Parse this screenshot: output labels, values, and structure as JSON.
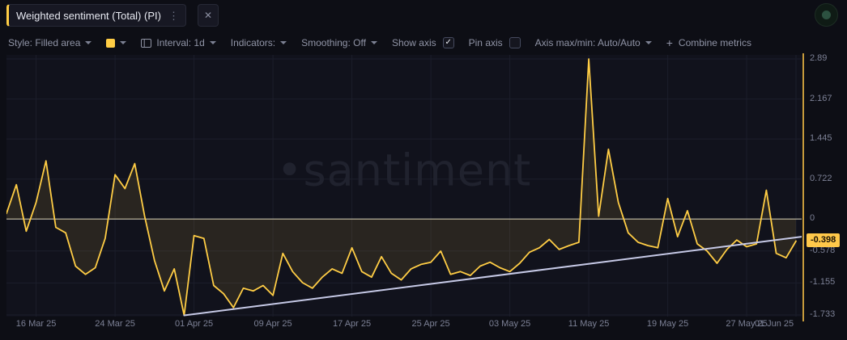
{
  "tab": {
    "title": "Weighted sentiment (Total) (PI)",
    "kebab_icon": "⋮",
    "close_icon": "✕",
    "accent_color": "#ffcd45"
  },
  "toolbar": {
    "style_label": "Style: Filled area",
    "swatch_color": "#ffcd45",
    "interval_label": "Interval: 1d",
    "indicators_label": "Indicators:",
    "smoothing_label": "Smoothing: Off",
    "show_axis_label": "Show axis",
    "show_axis_checked": true,
    "check_glyph": "✓",
    "pin_axis_label": "Pin axis",
    "pin_axis_checked": false,
    "axis_maxmin_label": "Axis max/min: Auto/Auto",
    "plus_sign": "+",
    "combine_metrics_label": "Combine metrics"
  },
  "watermark": "•santiment",
  "axis": {
    "current_value_label": "-0.398"
  },
  "chart_data": {
    "type": "area",
    "title": "Weighted sentiment (Total) (PI)",
    "interval": "1d",
    "xlabel": "",
    "ylabel": "",
    "ylim": [
      -1.733,
      2.89
    ],
    "grid": true,
    "colors": {
      "series": "#ffcd45",
      "fill_opacity": 0.1,
      "trend": "#c6c9e6",
      "zero_line": "#e2dcc5",
      "grid": "#1c1e2b",
      "axis": "#c79b3c",
      "background": "#11121c"
    },
    "y_ticks": [
      2.89,
      2.167,
      1.445,
      0.722,
      0,
      -0.578,
      -1.155,
      -1.733
    ],
    "y_tick_labels": [
      "2.89",
      "2.167",
      "1.445",
      "0.722",
      "0",
      "-0.578",
      "-1.155",
      "-1.733"
    ],
    "x_tick_labels": [
      "16 Mar 25",
      "24 Mar 25",
      "01 Apr 25",
      "09 Apr 25",
      "17 Apr 25",
      "25 Apr 25",
      "03 May 25",
      "11 May 25",
      "19 May 25",
      "27 May 25",
      "01 Jun 25"
    ],
    "x_tick_indices": [
      3,
      11,
      19,
      27,
      35,
      43,
      51,
      59,
      67,
      75,
      80
    ],
    "dates": [
      "2025-03-13",
      "2025-03-14",
      "2025-03-15",
      "2025-03-16",
      "2025-03-17",
      "2025-03-18",
      "2025-03-19",
      "2025-03-20",
      "2025-03-21",
      "2025-03-22",
      "2025-03-23",
      "2025-03-24",
      "2025-03-25",
      "2025-03-26",
      "2025-03-27",
      "2025-03-28",
      "2025-03-29",
      "2025-03-30",
      "2025-03-31",
      "2025-04-01",
      "2025-04-02",
      "2025-04-03",
      "2025-04-04",
      "2025-04-05",
      "2025-04-06",
      "2025-04-07",
      "2025-04-08",
      "2025-04-09",
      "2025-04-10",
      "2025-04-11",
      "2025-04-12",
      "2025-04-13",
      "2025-04-14",
      "2025-04-15",
      "2025-04-16",
      "2025-04-17",
      "2025-04-18",
      "2025-04-19",
      "2025-04-20",
      "2025-04-21",
      "2025-04-22",
      "2025-04-23",
      "2025-04-24",
      "2025-04-25",
      "2025-04-26",
      "2025-04-27",
      "2025-04-28",
      "2025-04-29",
      "2025-04-30",
      "2025-05-01",
      "2025-05-02",
      "2025-05-03",
      "2025-05-04",
      "2025-05-05",
      "2025-05-06",
      "2025-05-07",
      "2025-05-08",
      "2025-05-09",
      "2025-05-10",
      "2025-05-11",
      "2025-05-12",
      "2025-05-13",
      "2025-05-14",
      "2025-05-15",
      "2025-05-16",
      "2025-05-17",
      "2025-05-18",
      "2025-05-19",
      "2025-05-20",
      "2025-05-21",
      "2025-05-22",
      "2025-05-23",
      "2025-05-24",
      "2025-05-25",
      "2025-05-26",
      "2025-05-27",
      "2025-05-28",
      "2025-05-29",
      "2025-05-30",
      "2025-05-31",
      "2025-06-01"
    ],
    "values": [
      0.1,
      0.62,
      -0.22,
      0.3,
      1.05,
      -0.15,
      -0.25,
      -0.85,
      -1.0,
      -0.88,
      -0.35,
      0.8,
      0.55,
      1.0,
      0.05,
      -0.75,
      -1.3,
      -0.9,
      -1.74,
      -0.3,
      -0.35,
      -1.2,
      -1.35,
      -1.6,
      -1.25,
      -1.3,
      -1.2,
      -1.38,
      -0.62,
      -0.95,
      -1.15,
      -1.25,
      -1.05,
      -0.9,
      -0.98,
      -0.52,
      -0.95,
      -1.05,
      -0.68,
      -0.98,
      -1.1,
      -0.9,
      -0.82,
      -0.78,
      -0.58,
      -1.0,
      -0.95,
      -1.02,
      -0.85,
      -0.78,
      -0.88,
      -0.95,
      -0.8,
      -0.6,
      -0.52,
      -0.37,
      -0.55,
      -0.48,
      -0.42,
      2.89,
      0.05,
      1.26,
      0.3,
      -0.25,
      -0.42,
      -0.48,
      -0.52,
      0.37,
      -0.32,
      0.15,
      -0.45,
      -0.58,
      -0.8,
      -0.55,
      -0.38,
      -0.5,
      -0.45,
      0.52,
      -0.62,
      -0.7,
      -0.398
    ],
    "trend_line": {
      "start_index": 18,
      "start_value": -1.74,
      "end_value": -0.32
    },
    "current_value": -0.398
  }
}
